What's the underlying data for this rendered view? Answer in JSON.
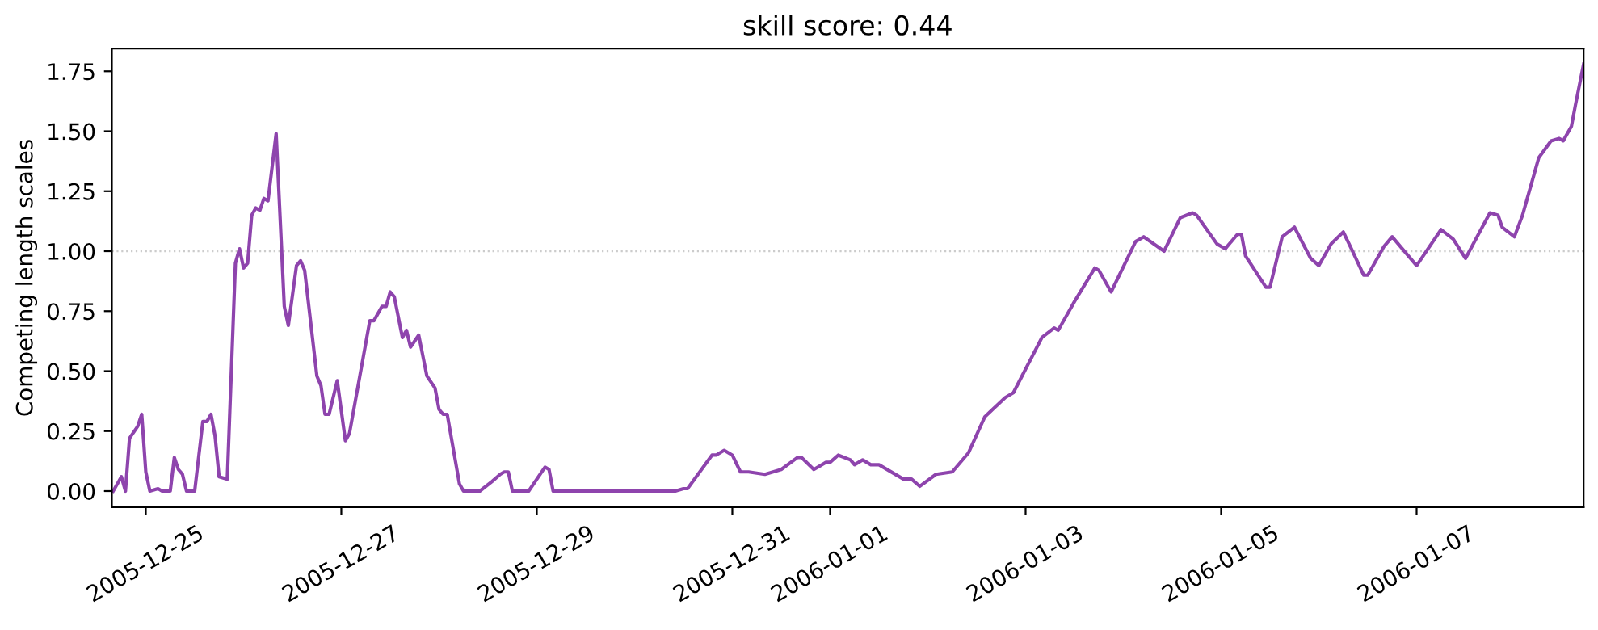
{
  "chart_data": {
    "type": "line",
    "title": "skill score: 0.44",
    "ylabel": "Competing length scales",
    "xlim": [
      "2005-12-24T15:40",
      "2006-01-08T17:00"
    ],
    "xticks": [
      "2005-12-25",
      "2005-12-27",
      "2005-12-29",
      "2005-12-31",
      "2006-01-01",
      "2006-01-03",
      "2006-01-05",
      "2006-01-07"
    ],
    "ylim": [
      -0.067,
      1.845
    ],
    "yticks": [
      {
        "value": 0,
        "label": "0.00"
      },
      {
        "value": 0.25,
        "label": "0.25"
      },
      {
        "value": 0.5,
        "label": "0.50"
      },
      {
        "value": 0.75,
        "label": "0.75"
      },
      {
        "value": 1.0,
        "label": "1.00"
      },
      {
        "value": 1.25,
        "label": "1.25"
      },
      {
        "value": 1.5,
        "label": "1.50"
      },
      {
        "value": 1.75,
        "label": "1.75"
      }
    ],
    "grid": false,
    "marker": "none",
    "line_style": "solid",
    "ref_lines": [
      {
        "axis": "y",
        "value": 1.0,
        "color": "#cccccc",
        "line_style": "dotted"
      }
    ],
    "series": [
      {
        "color": "#8e44ad",
        "x": [
          "2005-12-24T16:00",
          "2005-12-24T18:00",
          "2005-12-24T19:00",
          "2005-12-24T20:00",
          "2005-12-24T22:00",
          "2005-12-24T23:00",
          "2005-12-25T00:00",
          "2005-12-25T01:00",
          "2005-12-25T03:00",
          "2005-12-25T04:00",
          "2005-12-25T06:00",
          "2005-12-25T07:00",
          "2005-12-25T08:00",
          "2005-12-25T09:00",
          "2005-12-25T10:00",
          "2005-12-25T12:00",
          "2005-12-25T14:00",
          "2005-12-25T15:00",
          "2005-12-25T16:00",
          "2005-12-25T17:00",
          "2005-12-25T18:00",
          "2005-12-25T20:00",
          "2005-12-25T22:00",
          "2005-12-25T23:00",
          "2005-12-26T00:00",
          "2005-12-26T01:00",
          "2005-12-26T02:00",
          "2005-12-26T03:00",
          "2005-12-26T04:00",
          "2005-12-26T05:00",
          "2005-12-26T06:00",
          "2005-12-26T08:00",
          "2005-12-26T10:00",
          "2005-12-26T11:00",
          "2005-12-26T13:00",
          "2005-12-26T14:00",
          "2005-12-26T15:00",
          "2005-12-26T18:00",
          "2005-12-26T19:00",
          "2005-12-26T20:00",
          "2005-12-26T21:00",
          "2005-12-26T23:00",
          "2005-12-27T01:00",
          "2005-12-27T02:00",
          "2005-12-27T07:00",
          "2005-12-27T08:00",
          "2005-12-27T10:00",
          "2005-12-27T11:00",
          "2005-12-27T12:00",
          "2005-12-27T13:00",
          "2005-12-27T15:00",
          "2005-12-27T16:00",
          "2005-12-27T17:00",
          "2005-12-27T19:00",
          "2005-12-27T21:00",
          "2005-12-27T23:00",
          "2005-12-28T00:00",
          "2005-12-28T01:00",
          "2005-12-28T02:00",
          "2005-12-28T05:00",
          "2005-12-28T06:00",
          "2005-12-28T10:00",
          "2005-12-28T13:00",
          "2005-12-28T15:00",
          "2005-12-28T16:00",
          "2005-12-28T17:00",
          "2005-12-28T18:00",
          "2005-12-28T22:00",
          "2005-12-29T02:00",
          "2005-12-29T03:00",
          "2005-12-29T04:00",
          "2005-12-29T19:00",
          "2005-12-30T10:00",
          "2005-12-30T12:00",
          "2005-12-30T13:00",
          "2005-12-30T19:00",
          "2005-12-30T20:00",
          "2005-12-30T22:00",
          "2005-12-31T00:00",
          "2005-12-31T02:00",
          "2005-12-31T04:00",
          "2005-12-31T08:00",
          "2005-12-31T12:00",
          "2005-12-31T16:00",
          "2005-12-31T17:00",
          "2005-12-31T20:00",
          "2005-12-31T23:00",
          "2006-01-01T00:00",
          "2006-01-01T02:00",
          "2006-01-01T05:00",
          "2006-01-01T06:00",
          "2006-01-01T08:00",
          "2006-01-01T10:00",
          "2006-01-01T12:00",
          "2006-01-01T18:00",
          "2006-01-01T20:00",
          "2006-01-01T22:00",
          "2006-01-02T02:00",
          "2006-01-02T06:00",
          "2006-01-02T10:00",
          "2006-01-02T14:00",
          "2006-01-02T19:00",
          "2006-01-02T21:00",
          "2006-01-03T04:00",
          "2006-01-03T07:00",
          "2006-01-03T08:00",
          "2006-01-03T10:00",
          "2006-01-03T12:00",
          "2006-01-03T17:00",
          "2006-01-03T18:00",
          "2006-01-03T21:00",
          "2006-01-04T03:00",
          "2006-01-04T05:00",
          "2006-01-04T10:00",
          "2006-01-04T14:00",
          "2006-01-04T17:00",
          "2006-01-04T18:00",
          "2006-01-04T23:00",
          "2006-01-05T01:00",
          "2006-01-05T04:00",
          "2006-01-05T05:00",
          "2006-01-05T06:00",
          "2006-01-05T11:00",
          "2006-01-05T12:00",
          "2006-01-05T15:00",
          "2006-01-05T18:00",
          "2006-01-05T22:00",
          "2006-01-06T00:00",
          "2006-01-06T03:00",
          "2006-01-06T06:00",
          "2006-01-06T08:00",
          "2006-01-06T11:00",
          "2006-01-06T12:00",
          "2006-01-06T16:00",
          "2006-01-06T18:00",
          "2006-01-06T20:00",
          "2006-01-07T00:00",
          "2006-01-07T06:00",
          "2006-01-07T09:00",
          "2006-01-07T12:00",
          "2006-01-07T18:00",
          "2006-01-07T20:00",
          "2006-01-07T21:00",
          "2006-01-08T00:00",
          "2006-01-08T02:00",
          "2006-01-08T06:00",
          "2006-01-08T09:00",
          "2006-01-08T11:00",
          "2006-01-08T12:00",
          "2006-01-08T14:00",
          "2006-01-08T15:00",
          "2006-01-08T17:00"
        ],
        "values": [
          0.0,
          0.06,
          0.0,
          0.22,
          0.27,
          0.32,
          0.08,
          0.0,
          0.01,
          0.0,
          0.0,
          0.14,
          0.09,
          0.07,
          0.0,
          0.0,
          0.29,
          0.29,
          0.32,
          0.23,
          0.06,
          0.05,
          0.95,
          1.01,
          0.93,
          0.95,
          1.15,
          1.18,
          1.17,
          1.22,
          1.21,
          1.49,
          0.77,
          0.69,
          0.94,
          0.96,
          0.92,
          0.48,
          0.44,
          0.32,
          0.32,
          0.46,
          0.21,
          0.24,
          0.71,
          0.71,
          0.77,
          0.77,
          0.83,
          0.81,
          0.64,
          0.67,
          0.6,
          0.65,
          0.48,
          0.43,
          0.34,
          0.32,
          0.32,
          0.03,
          0.0,
          0.0,
          0.04,
          0.07,
          0.08,
          0.08,
          0.0,
          0.0,
          0.1,
          0.09,
          0.0,
          0.0,
          0.0,
          0.01,
          0.01,
          0.15,
          0.15,
          0.17,
          0.15,
          0.08,
          0.08,
          0.07,
          0.09,
          0.14,
          0.14,
          0.09,
          0.12,
          0.12,
          0.15,
          0.13,
          0.11,
          0.13,
          0.11,
          0.11,
          0.05,
          0.05,
          0.02,
          0.07,
          0.08,
          0.16,
          0.31,
          0.39,
          0.41,
          0.64,
          0.68,
          0.67,
          0.73,
          0.79,
          0.93,
          0.92,
          0.83,
          1.04,
          1.06,
          1.0,
          1.14,
          1.16,
          1.15,
          1.03,
          1.01,
          1.07,
          1.07,
          0.98,
          0.85,
          0.85,
          1.06,
          1.1,
          0.97,
          0.94,
          1.03,
          1.08,
          1.01,
          0.9,
          0.9,
          1.02,
          1.06,
          1.02,
          0.94,
          1.09,
          1.05,
          0.97,
          1.16,
          1.15,
          1.1,
          1.06,
          1.15,
          1.39,
          1.46,
          1.47,
          1.46,
          1.52,
          1.61,
          1.78
        ]
      }
    ]
  }
}
